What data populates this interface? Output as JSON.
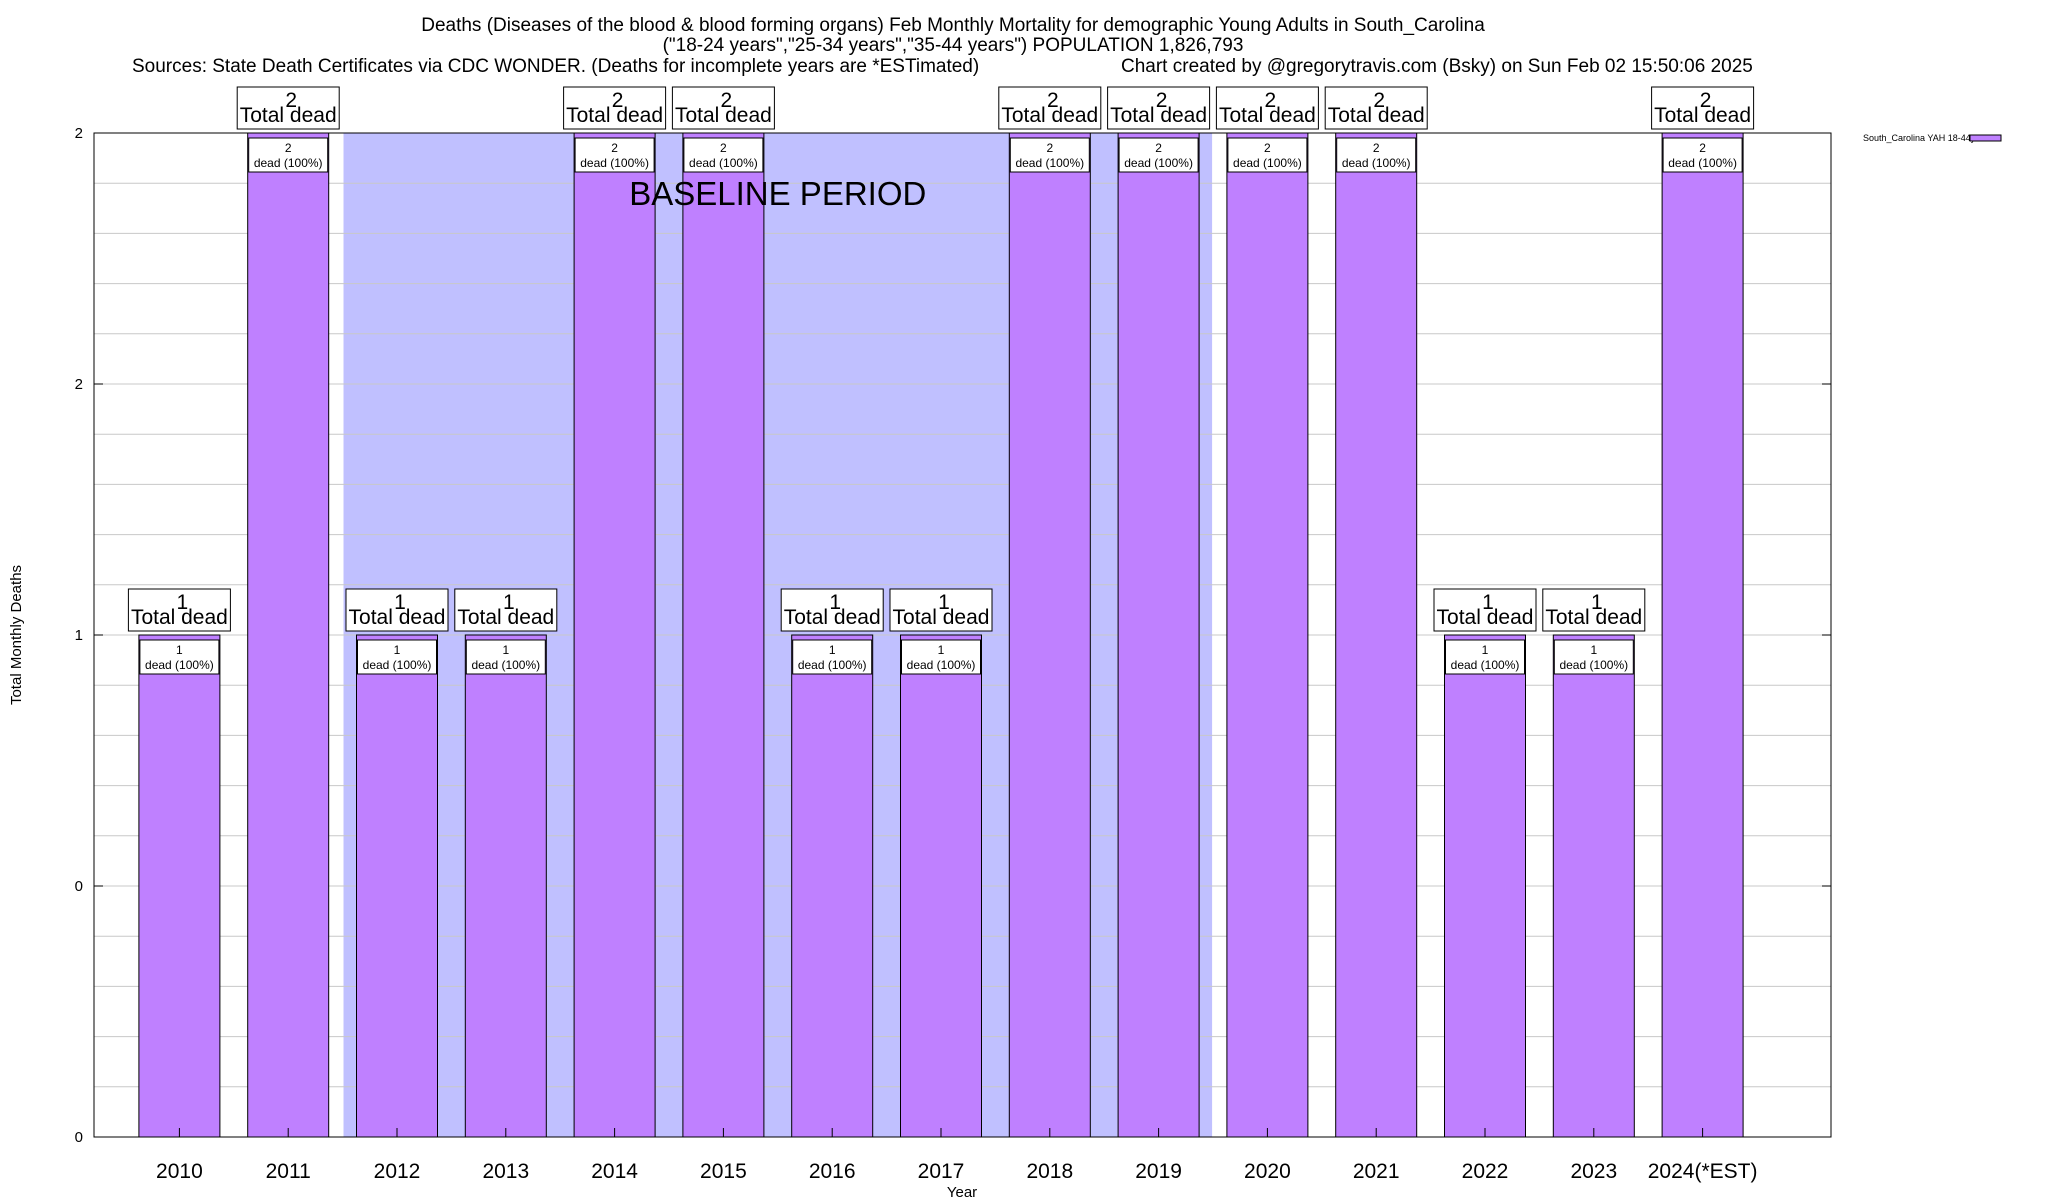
{
  "chart_data": {
    "type": "bar",
    "title_lines": [
      "Deaths (Diseases of the blood & blood forming organs) Feb Monthly Mortality for demographic Young Adults in South_Carolina",
      "(\"18-24 years\",\"25-34 years\",\"35-44 years\") POPULATION 1,826,793"
    ],
    "sources_text": "Sources: State Death Certificates via CDC WONDER. (Deaths for incomplete years are *ESTimated)",
    "credit_text": "Chart created by @gregorytravis.com (Bsky) on Sun Feb 02 15:50:06 2025",
    "xlabel": "Year",
    "ylabel": "Total Monthly Deaths",
    "ylim": [
      0,
      2
    ],
    "y_tick_labels": [
      "0",
      "0",
      "1",
      "2",
      "2"
    ],
    "y_tick_values": [
      0,
      0.5,
      1,
      1.5,
      2
    ],
    "grid": true,
    "legend": {
      "placement": "top-right",
      "entries": [
        "South_Carolina YAH 18-44yo"
      ]
    },
    "bar_color": "#bf80ff",
    "baseline": {
      "label": "BASELINE PERIOD",
      "color": "#c0c0ff",
      "start_category": "2012",
      "end_category": "2019"
    },
    "categories": [
      "2010",
      "2011",
      "2012",
      "2013",
      "2014",
      "2015",
      "2016",
      "2017",
      "2018",
      "2019",
      "2020",
      "2021",
      "2022",
      "2023",
      "2024(*EST)"
    ],
    "series": [
      {
        "name": "South_Carolina YAH 18-44yo",
        "values": [
          1,
          2,
          1,
          1,
          2,
          2,
          1,
          1,
          2,
          2,
          2,
          2,
          1,
          1,
          2
        ]
      }
    ],
    "total_labels": [
      "1",
      "2",
      "1",
      "1",
      "2",
      "2",
      "1",
      "1",
      "2",
      "2",
      "2",
      "2",
      "1",
      "1",
      "2"
    ],
    "total_suffix": "Total dead",
    "inner_labels": [
      "1",
      "2",
      "1",
      "1",
      "2",
      "2",
      "1",
      "1",
      "2",
      "2",
      "2",
      "2",
      "1",
      "1",
      "2"
    ],
    "inner_suffix": "dead (100%)"
  }
}
